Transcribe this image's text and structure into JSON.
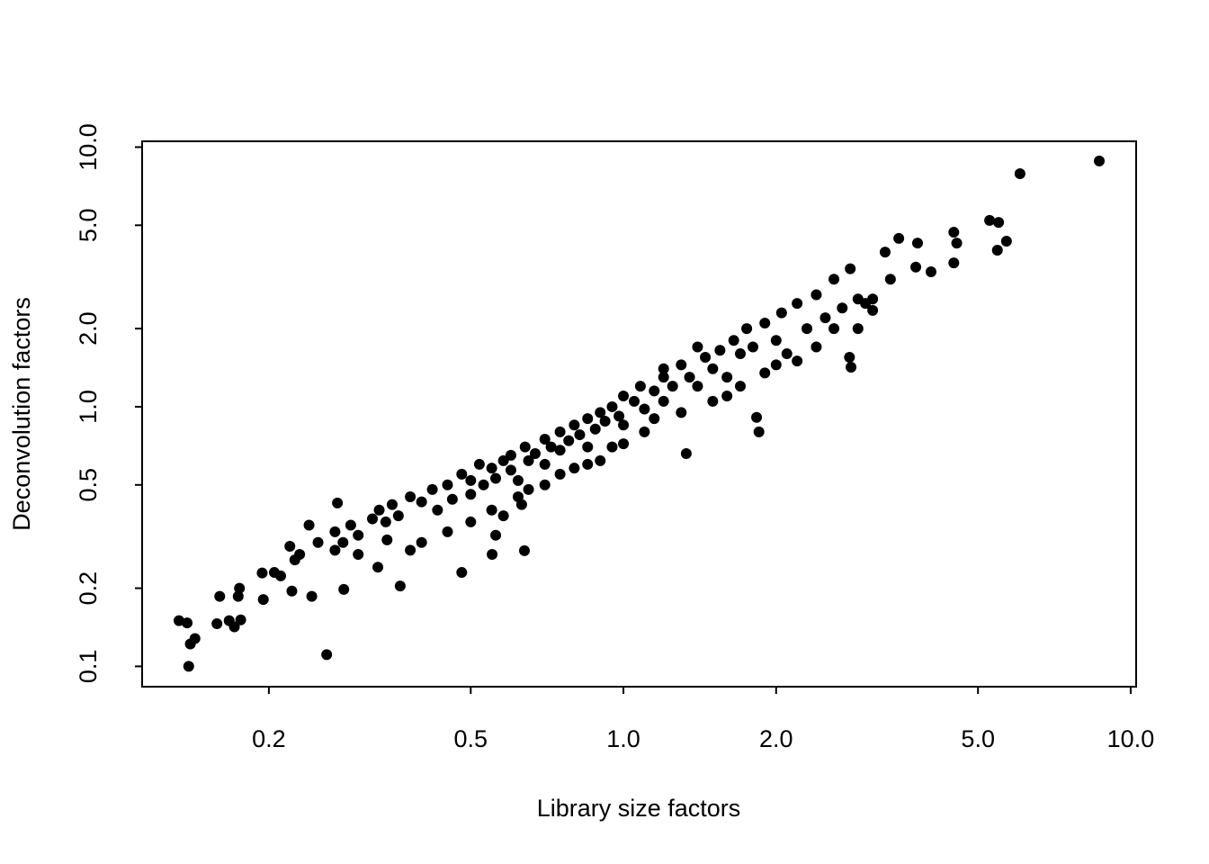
{
  "chart_data": {
    "type": "scatter",
    "x_label": "Library size factors",
    "y_label": "Deconvolution factors",
    "log_x": true,
    "log_y": true,
    "color": "#000000",
    "xlim": [
      0.1125,
      10.25
    ],
    "ylim": [
      0.0835,
      10.53
    ],
    "xticks": [
      0.2,
      0.5,
      {
        "value": 1,
        "label": "1.0"
      },
      {
        "value": 2,
        "label": "2.0"
      },
      {
        "value": 5,
        "label": "5.0"
      },
      {
        "value": 10,
        "label": "10.0"
      }
    ],
    "yticks": [
      0.1,
      0.2,
      0.5,
      {
        "value": 1,
        "label": "1.0"
      },
      {
        "value": 2,
        "label": "2.0"
      },
      {
        "value": 5,
        "label": "5.0"
      },
      {
        "value": 10,
        "label": "10.0"
      }
    ],
    "x": [
      8.67,
      6.05,
      5.27,
      5.49,
      5.69,
      5.46,
      4.48,
      4.54,
      4.48,
      3.49,
      3.8,
      3.77,
      4.04,
      3.28,
      3.36,
      3.1,
      2.81,
      2.79,
      1.85,
      1.83,
      1.33,
      0.26,
      0.139,
      0.133,
      0.138,
      0.14,
      0.143,
      0.16,
      0.158,
      0.167,
      0.171,
      0.176,
      0.174,
      0.175,
      0.195,
      0.194,
      0.205,
      0.211,
      0.222,
      0.225,
      0.243,
      0.273,
      0.281,
      0.363,
      0.48,
      0.551,
      0.638,
      0.342,
      0.328,
      0.25,
      0.27,
      0.29,
      0.3,
      0.32,
      0.33,
      0.35,
      0.36,
      0.38,
      0.4,
      0.42,
      0.43,
      0.45,
      0.46,
      0.48,
      0.5,
      0.5,
      0.52,
      0.53,
      0.55,
      0.56,
      0.58,
      0.6,
      0.6,
      0.62,
      0.64,
      0.65,
      0.67,
      0.7,
      0.7,
      0.72,
      0.75,
      0.75,
      0.78,
      0.8,
      0.82,
      0.85,
      0.85,
      0.88,
      0.9,
      0.92,
      0.95,
      0.98,
      1.0,
      1.0,
      1.05,
      1.08,
      1.1,
      1.15,
      1.2,
      1.2,
      1.25,
      1.3,
      1.35,
      1.4,
      1.45,
      1.5,
      1.55,
      1.6,
      1.65,
      1.7,
      1.75,
      1.8,
      1.9,
      2.0,
      2.05,
      2.1,
      2.2,
      2.3,
      2.4,
      2.5,
      2.6,
      2.7,
      2.8,
      2.9,
      3.0,
      2.4,
      2.2,
      1.9,
      1.5,
      1.3,
      1.1,
      0.95,
      0.85,
      0.75,
      0.65,
      0.55,
      0.5,
      0.45,
      0.4,
      0.38,
      0.3,
      0.28,
      0.23,
      0.22,
      0.24,
      0.27,
      0.34,
      0.62,
      0.7,
      0.8,
      1.0,
      1.6,
      1.7,
      2.0,
      2.6,
      2.9,
      3.1,
      1.4,
      1.2,
      1.15,
      0.9,
      0.63,
      0.58,
      0.56
    ],
    "values": [
      8.84,
      7.9,
      5.22,
      5.13,
      4.34,
      4.01,
      4.7,
      4.27,
      3.58,
      4.45,
      4.27,
      3.45,
      3.31,
      3.94,
      3.1,
      2.35,
      1.42,
      1.55,
      0.8,
      0.91,
      0.66,
      0.111,
      0.1,
      0.15,
      0.147,
      0.122,
      0.128,
      0.186,
      0.146,
      0.15,
      0.142,
      0.151,
      0.186,
      0.2,
      0.181,
      0.229,
      0.23,
      0.223,
      0.195,
      0.257,
      0.186,
      0.426,
      0.198,
      0.204,
      0.23,
      0.27,
      0.279,
      0.307,
      0.241,
      0.3,
      0.33,
      0.35,
      0.32,
      0.37,
      0.4,
      0.42,
      0.38,
      0.45,
      0.43,
      0.48,
      0.4,
      0.5,
      0.44,
      0.55,
      0.52,
      0.46,
      0.6,
      0.5,
      0.58,
      0.53,
      0.62,
      0.57,
      0.65,
      0.52,
      0.7,
      0.62,
      0.66,
      0.75,
      0.6,
      0.7,
      0.8,
      0.68,
      0.74,
      0.85,
      0.78,
      0.9,
      0.7,
      0.82,
      0.95,
      0.88,
      1.0,
      0.92,
      1.1,
      0.85,
      1.05,
      1.2,
      0.98,
      1.15,
      1.3,
      1.05,
      1.2,
      1.45,
      1.3,
      1.2,
      1.55,
      1.4,
      1.65,
      1.3,
      1.8,
      1.6,
      2.0,
      1.7,
      2.1,
      1.8,
      2.3,
      1.6,
      2.5,
      2.0,
      2.7,
      2.2,
      3.1,
      2.4,
      3.4,
      2.6,
      2.5,
      1.7,
      1.5,
      1.35,
      1.05,
      0.95,
      0.8,
      0.7,
      0.6,
      0.55,
      0.48,
      0.4,
      0.36,
      0.33,
      0.3,
      0.28,
      0.27,
      0.3,
      0.27,
      0.29,
      0.35,
      0.28,
      0.36,
      0.45,
      0.5,
      0.58,
      0.72,
      1.1,
      1.2,
      1.45,
      2.0,
      2.0,
      2.6,
      1.7,
      1.4,
      0.9,
      0.62,
      0.42,
      0.38,
      0.32
    ]
  }
}
